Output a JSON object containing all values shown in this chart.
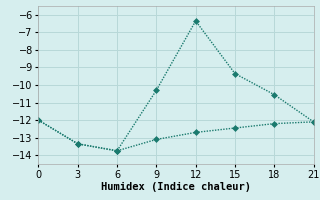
{
  "line1_x": [
    0,
    3,
    6,
    9,
    12,
    15,
    18,
    21
  ],
  "line1_y": [
    -12.0,
    -13.35,
    -13.75,
    -10.3,
    -6.35,
    -9.35,
    -10.55,
    -12.1
  ],
  "line2_x": [
    0,
    3,
    6,
    9,
    12,
    15,
    18,
    21
  ],
  "line2_y": [
    -12.0,
    -13.35,
    -13.75,
    -13.1,
    -12.7,
    -12.45,
    -12.2,
    -12.1
  ],
  "line_color": "#1a7a6e",
  "bg_color": "#d6eeee",
  "grid_color": "#b8d8d8",
  "xlabel": "Humidex (Indice chaleur)",
  "xlim": [
    0,
    21
  ],
  "ylim": [
    -14.5,
    -5.5
  ],
  "xticks": [
    0,
    3,
    6,
    9,
    12,
    15,
    18,
    21
  ],
  "yticks": [
    -14,
    -13,
    -12,
    -11,
    -10,
    -9,
    -8,
    -7,
    -6
  ],
  "xlabel_fontsize": 7.5,
  "tick_fontsize": 7,
  "marker": "D",
  "markersize": 3,
  "linewidth": 1.0
}
